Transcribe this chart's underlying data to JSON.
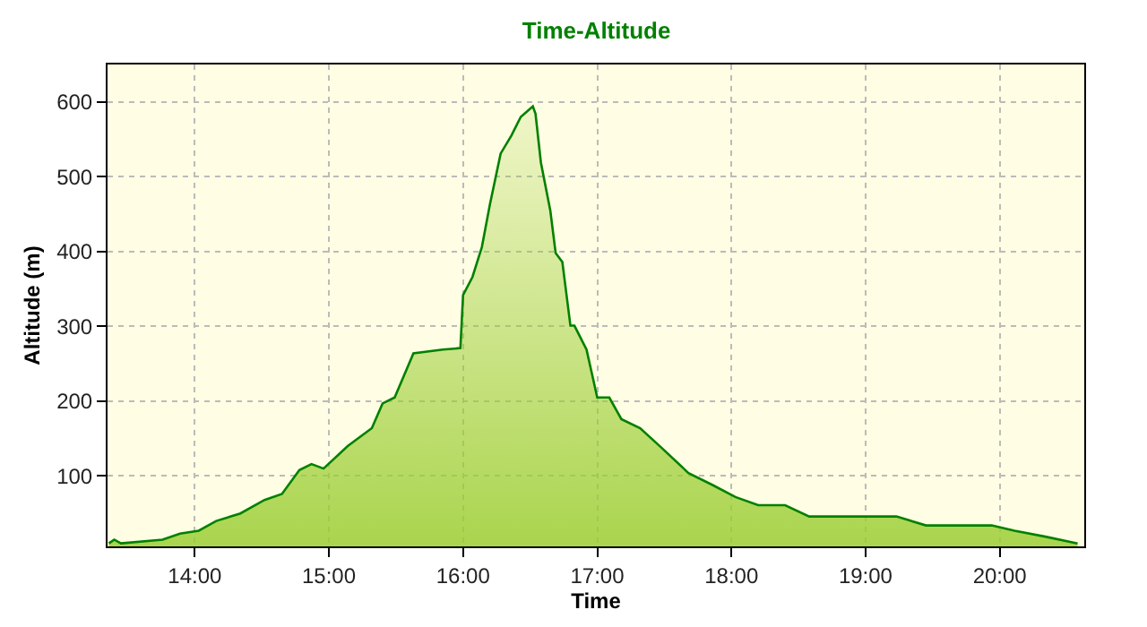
{
  "chart_data": {
    "type": "area",
    "title": "Time-Altitude",
    "xlabel": "Time",
    "ylabel": "Altitude (m)",
    "xlim": [
      13.35,
      20.63
    ],
    "xticks": [
      {
        "value": 14,
        "label": "14:00"
      },
      {
        "value": 15,
        "label": "15:00"
      },
      {
        "value": 16,
        "label": "16:00"
      },
      {
        "value": 17,
        "label": "17:00"
      },
      {
        "value": 18,
        "label": "18:00"
      },
      {
        "value": 19,
        "label": "19:00"
      },
      {
        "value": 20,
        "label": "20:00"
      }
    ],
    "ylim": [
      6,
      650
    ],
    "yticks": [
      100,
      200,
      300,
      400,
      500,
      600
    ],
    "grid": true,
    "line_style": "solid",
    "series": [
      {
        "color": "#008000",
        "x": [
          13.36,
          13.4,
          13.45,
          13.76,
          13.89,
          14.03,
          14.16,
          14.34,
          14.52,
          14.65,
          14.78,
          14.87,
          14.96,
          15.14,
          15.32,
          15.4,
          15.49,
          15.63,
          15.85,
          15.98,
          16.0,
          16.07,
          16.14,
          16.2,
          16.28,
          16.36,
          16.43,
          16.52,
          16.54,
          16.58,
          16.65,
          16.69,
          16.74,
          16.8,
          16.83,
          16.92,
          17.0,
          17.09,
          17.18,
          17.32,
          17.49,
          17.68,
          17.86,
          18.03,
          18.2,
          18.4,
          18.58,
          19.23,
          19.45,
          19.94,
          20.11,
          20.34,
          20.58
        ],
        "values": [
          10,
          15,
          10,
          15,
          23,
          27,
          40,
          50,
          68,
          76,
          108,
          116,
          110,
          140,
          164,
          197,
          205,
          264,
          269,
          271,
          342,
          366,
          406,
          463,
          531,
          555,
          580,
          594,
          584,
          519,
          455,
          398,
          386,
          301,
          301,
          269,
          205,
          205,
          176,
          164,
          136,
          104,
          88,
          72,
          61,
          61,
          46,
          46,
          34,
          34,
          27,
          19,
          10
        ]
      }
    ]
  }
}
